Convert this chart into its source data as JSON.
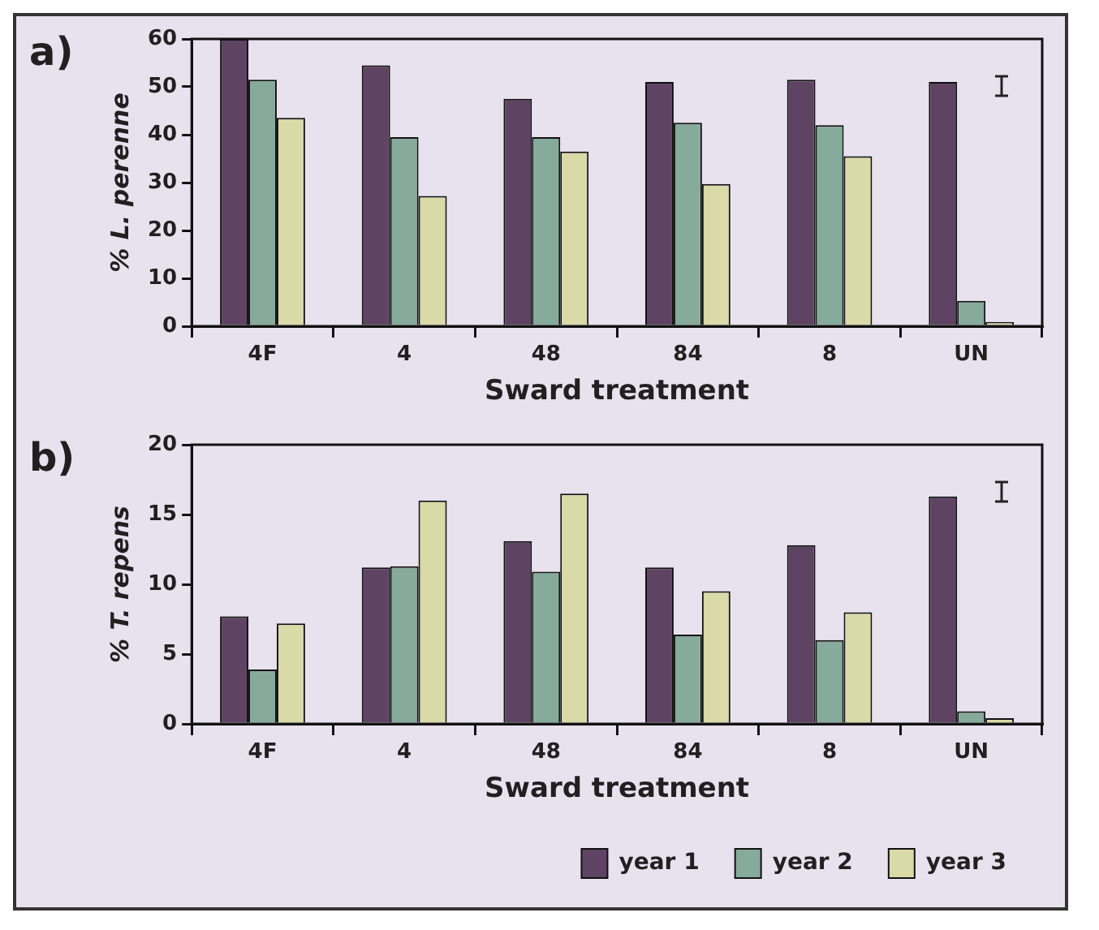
{
  "chart_data": [
    {
      "type": "bar",
      "title": "a)",
      "xlabel": "Sward treatment",
      "ylabel": "% L. perenne",
      "categories": [
        "4F",
        "4",
        "48",
        "84",
        "8",
        "UN"
      ],
      "ylim": [
        0,
        60
      ],
      "yticks": [
        0,
        10,
        20,
        30,
        40,
        50,
        60
      ],
      "grid": false,
      "legend": false,
      "series": [
        {
          "color": "#5e4462",
          "values": [
            60,
            54.5,
            47.5,
            51,
            51.5,
            51
          ]
        },
        {
          "color": "#86aa9b",
          "values": [
            51.5,
            39.5,
            39.5,
            42.5,
            42,
            5.3
          ]
        },
        {
          "color": "#dad9a8",
          "values": [
            43.5,
            27.2,
            36.5,
            29.7,
            35.5,
            0.9
          ]
        }
      ]
    },
    {
      "type": "bar",
      "title": "b)",
      "xlabel": "Sward treatment",
      "ylabel": "% T. repens",
      "categories": [
        "4F",
        "4",
        "48",
        "84",
        "8",
        "UN"
      ],
      "ylim": [
        0,
        20
      ],
      "yticks": [
        0,
        5,
        10,
        15,
        20
      ],
      "grid": false,
      "legend": "bottom right",
      "series": [
        {
          "name": "year 1",
          "color": "#5e4462",
          "values": [
            7.7,
            11.2,
            13.1,
            11.2,
            12.8,
            16.3
          ]
        },
        {
          "name": "year 2",
          "color": "#86aa9b",
          "values": [
            3.9,
            11.3,
            10.9,
            6.4,
            6.0,
            0.9
          ]
        },
        {
          "name": "year 3",
          "color": "#dad9a8",
          "values": [
            7.2,
            16.0,
            16.5,
            9.5,
            8.0,
            0.4
          ]
        }
      ]
    }
  ]
}
